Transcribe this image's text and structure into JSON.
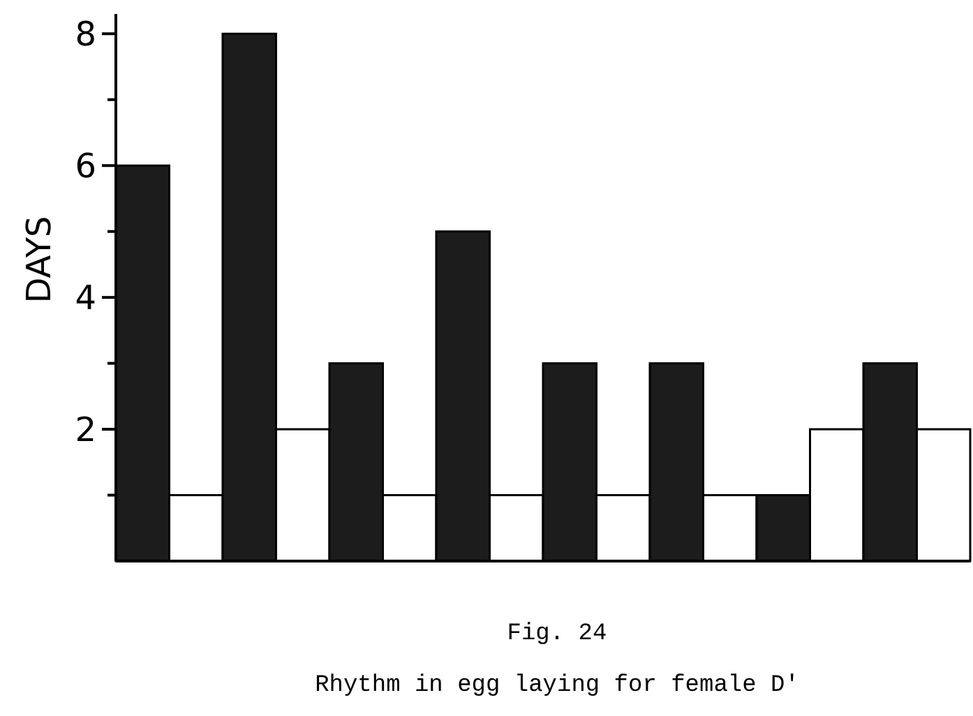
{
  "chart_data": {
    "type": "bar",
    "ylabel": "DAYS",
    "categories": [
      null,
      null,
      null,
      null,
      null,
      null,
      null,
      null,
      null,
      null,
      null,
      null,
      null,
      null,
      null,
      null
    ],
    "values": [
      6,
      1,
      8,
      2,
      3,
      1,
      5,
      1,
      3,
      1,
      3,
      1,
      1,
      2,
      3,
      2
    ],
    "colors": [
      "#1c1c1c",
      "#ffffff",
      "#1c1c1c",
      "#ffffff",
      "#1c1c1c",
      "#ffffff",
      "#1c1c1c",
      "#ffffff",
      "#1c1c1c",
      "#ffffff",
      "#1c1c1c",
      "#ffffff",
      "#1c1c1c",
      "#ffffff",
      "#1c1c1c",
      "#ffffff"
    ],
    "ylim": [
      0,
      8.3
    ],
    "yticks": [
      {
        "value": 1,
        "label": null
      },
      2,
      {
        "value": 3,
        "label": null
      },
      4,
      {
        "value": 5,
        "label": null
      },
      6,
      {
        "value": 7,
        "label": null
      },
      8
    ],
    "annotations": [
      "Fig. 24",
      "Rhythm in egg laying for female D'"
    ]
  }
}
